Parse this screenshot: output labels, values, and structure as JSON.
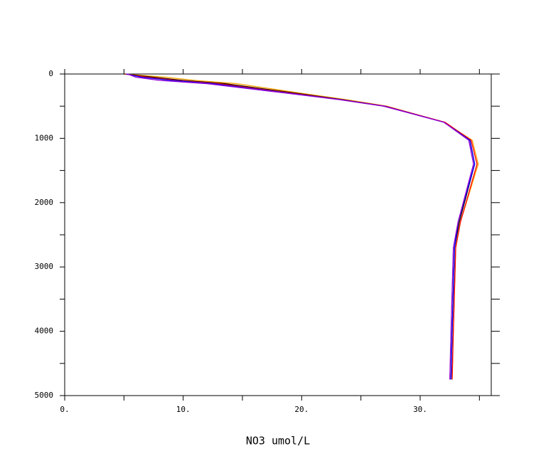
{
  "chart_data": {
    "type": "line",
    "xlabel": "NO3  umol/L",
    "depths": [
      0,
      50,
      100,
      150,
      300,
      400,
      500,
      750,
      1030,
      1400,
      2300,
      2700,
      4000,
      4750
    ],
    "series": [
      {
        "color": "#ffa500",
        "values": [
          5.0,
          8.5,
          11.0,
          14.5,
          20.0,
          23.8,
          27.2,
          32.0,
          34.4,
          34.9,
          33.4,
          33.0,
          32.8,
          32.7
        ]
      },
      {
        "color": "#000000",
        "values": [
          5.0,
          7.5,
          10.0,
          13.5,
          19.6,
          23.5,
          27.0,
          32.0,
          34.2,
          34.6,
          33.3,
          32.9,
          32.7,
          32.6
        ]
      },
      {
        "color": "#ff0000",
        "values": [
          5.1,
          7.0,
          9.5,
          13.0,
          19.3,
          23.4,
          27.1,
          32.1,
          34.3,
          34.8,
          33.4,
          33.0,
          32.8,
          32.7
        ]
      },
      {
        "color": "#0000ff",
        "values": [
          5.2,
          6.5,
          9.0,
          12.5,
          19.0,
          23.3,
          27.0,
          32.0,
          34.2,
          34.6,
          33.2,
          32.9,
          32.7,
          32.6
        ]
      },
      {
        "color": "#9400d3",
        "values": [
          5.3,
          6.0,
          8.0,
          12.0,
          18.8,
          23.2,
          26.9,
          32.0,
          34.1,
          34.5,
          33.2,
          32.8,
          32.6,
          32.5
        ]
      }
    ],
    "xlim": [
      0,
      36
    ],
    "xticks": [
      {
        "value": 0,
        "label": "0."
      },
      {
        "value": 10,
        "label": "10."
      },
      {
        "value": 20,
        "label": "20."
      },
      {
        "value": 30,
        "label": "30."
      }
    ],
    "xminorticks": [
      5,
      15,
      25,
      35
    ],
    "ylim": [
      0,
      5000
    ],
    "yticks": [
      0,
      1000,
      2000,
      3000,
      4000,
      5000
    ],
    "yminorticks": [
      500,
      1500,
      2500,
      3500,
      4500
    ],
    "y_inverted": true
  }
}
